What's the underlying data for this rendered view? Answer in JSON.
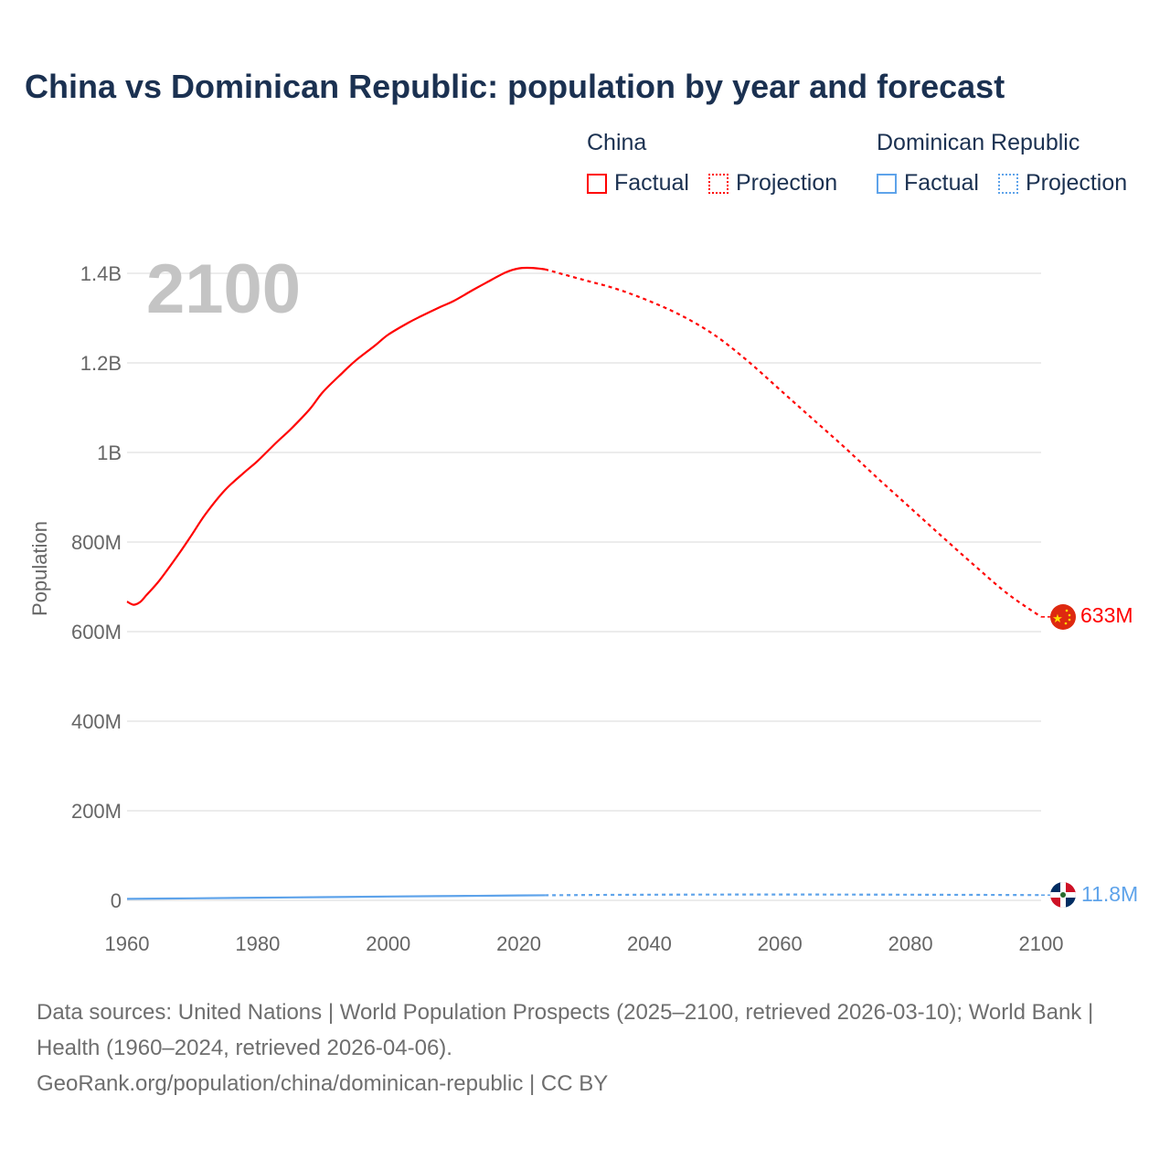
{
  "title": "China vs Dominican Republic: population by year and forecast",
  "legend": {
    "groups": [
      {
        "name": "China",
        "factual": "Factual",
        "projection": "Projection",
        "color": "#ff0000"
      },
      {
        "name": "Dominican Republic",
        "factual": "Factual",
        "projection": "Projection",
        "color": "#5ea3ea"
      }
    ]
  },
  "year_label": "2100",
  "end_labels": {
    "china": "633M",
    "dominican_republic": "11.8M"
  },
  "source": {
    "line1": "Data sources: United Nations | World Population Prospects (2025–2100, retrieved 2026-03-10); World Bank | Health (1960–2024, retrieved 2026-04-06).",
    "line2": "GeoRank.org/population/china/dominican-republic | CC BY"
  },
  "chart_data": {
    "type": "line",
    "title": "China vs Dominican Republic: population by year and forecast",
    "xlabel": "",
    "ylabel": "Population",
    "xlim": [
      1960,
      2100
    ],
    "ylim": [
      0,
      1400000000
    ],
    "x_ticks": [
      "1960",
      "1980",
      "2000",
      "2020",
      "2040",
      "2060",
      "2080",
      "2100"
    ],
    "x_tick_values": [
      1960,
      1980,
      2000,
      2020,
      2040,
      2060,
      2080,
      2100
    ],
    "y_ticks": [
      "0",
      "200M",
      "400M",
      "600M",
      "800M",
      "1B",
      "1.2B",
      "1.4B"
    ],
    "y_tick_values": [
      0,
      200000000,
      400000000,
      600000000,
      800000000,
      1000000000,
      1200000000,
      1400000000
    ],
    "grid": true,
    "series": [
      {
        "name": "China",
        "kind": "factual",
        "color": "#ff0000",
        "x": [
          1960,
          1961,
          1962,
          1963,
          1965,
          1968,
          1970,
          1972,
          1975,
          1978,
          1980,
          1983,
          1985,
          1988,
          1990,
          1993,
          1995,
          1998,
          2000,
          2003,
          2005,
          2008,
          2010,
          2013,
          2015,
          2018,
          2020,
          2022,
          2024
        ],
        "y": [
          667000000.0,
          660000000.0,
          666000000.0,
          682000000.0,
          715000000.0,
          775000000.0,
          818000000.0,
          862000000.0,
          916000000.0,
          956000000.0,
          981000000.0,
          1024000000.0,
          1051000000.0,
          1097000000.0,
          1135000000.0,
          1178000000.0,
          1205000000.0,
          1239000000.0,
          1263000000.0,
          1289000000.0,
          1304000000.0,
          1325000000.0,
          1338000000.0,
          1363000000.0,
          1379000000.0,
          1402000000.0,
          1411000000.0,
          1412000000.0,
          1409000000.0
        ]
      },
      {
        "name": "China",
        "kind": "projection",
        "color": "#ff0000",
        "x": [
          2024,
          2030,
          2035,
          2040,
          2045,
          2050,
          2055,
          2060,
          2065,
          2070,
          2075,
          2080,
          2085,
          2090,
          2095,
          2100
        ],
        "y": [
          1409000000.0,
          1385000000.0,
          1365000000.0,
          1338000000.0,
          1305000000.0,
          1262000000.0,
          1205000000.0,
          1140000000.0,
          1075000000.0,
          1010000000.0,
          942000000.0,
          876000000.0,
          810000000.0,
          745000000.0,
          683000000.0,
          633000000.0
        ]
      },
      {
        "name": "Dominican Republic",
        "kind": "factual",
        "color": "#5ea3ea",
        "x": [
          1960,
          1970,
          1980,
          1990,
          2000,
          2010,
          2020,
          2024
        ],
        "y": [
          3300000.0,
          4500000.0,
          5800000.0,
          7200000.0,
          8500000.0,
          9700000.0,
          10900000.0,
          11400000.0
        ]
      },
      {
        "name": "Dominican Republic",
        "kind": "projection",
        "color": "#5ea3ea",
        "x": [
          2024,
          2040,
          2060,
          2080,
          2100
        ],
        "y": [
          11400000.0,
          12600000.0,
          13000000.0,
          12600000.0,
          11800000.0
        ]
      }
    ]
  }
}
